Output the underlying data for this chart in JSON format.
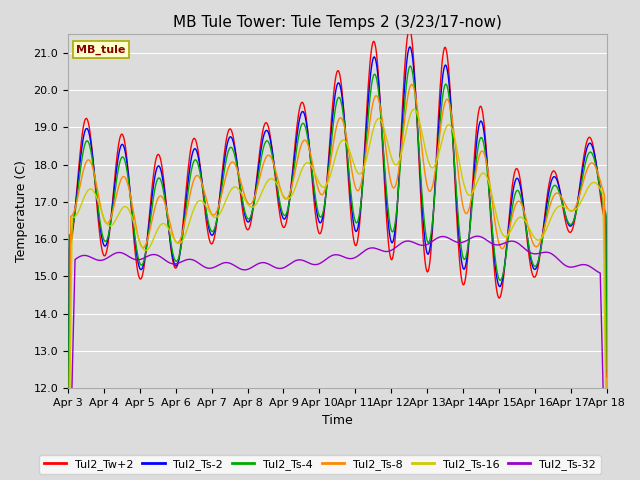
{
  "title": "MB Tule Tower: Tule Temps 2 (3/23/17-now)",
  "xlabel": "Time",
  "ylabel": "Temperature (C)",
  "ylim": [
    12.0,
    21.5
  ],
  "yticks": [
    12.0,
    13.0,
    14.0,
    15.0,
    16.0,
    17.0,
    18.0,
    19.0,
    20.0,
    21.0
  ],
  "xtick_labels": [
    "Apr 3",
    "Apr 4",
    "Apr 5",
    "Apr 6",
    "Apr 7",
    "Apr 8",
    "Apr 9",
    "Apr 10",
    "Apr 11",
    "Apr 12",
    "Apr 13",
    "Apr 14",
    "Apr 15",
    "Apr 16",
    "Apr 17",
    "Apr 18"
  ],
  "station_label": "MB_tule",
  "colors": {
    "Tul2_Tw+2": "#ff0000",
    "Tul2_Ts-2": "#0000ff",
    "Tul2_Ts-4": "#00aa00",
    "Tul2_Ts-8": "#ff8800",
    "Tul2_Ts-16": "#cccc00",
    "Tul2_Ts-32": "#9900cc"
  },
  "bg_color": "#dcdcdc",
  "grid_color": "#ffffff",
  "title_fontsize": 11,
  "label_fontsize": 9,
  "tick_fontsize": 8,
  "legend_fontsize": 8
}
